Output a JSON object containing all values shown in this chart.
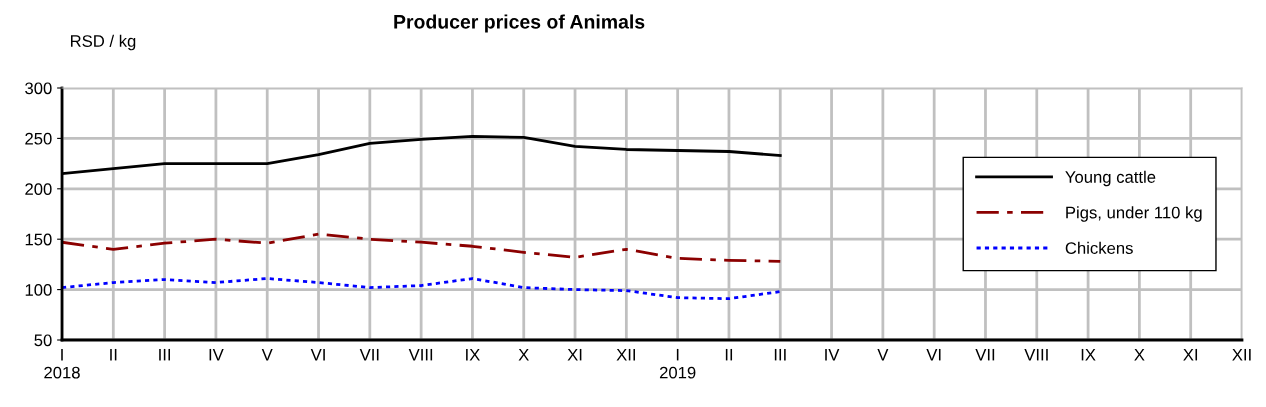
{
  "chart_data": {
    "type": "line",
    "title": "Producer prices of Animals",
    "ylabel": "RSD / kg",
    "categories": [
      "I\n2018",
      "II",
      "III",
      "IV",
      "V",
      "VI",
      "VII",
      "VIII",
      "IX",
      "X",
      "XI",
      "XII",
      "I\n2019",
      "II",
      "III",
      "IV",
      "V",
      "VI",
      "VII",
      "VIII",
      "IX",
      "X",
      "XI",
      "XII"
    ],
    "series": [
      {
        "name": "Young cattle",
        "color": "#000000",
        "line_style": "solid",
        "values": [
          215,
          220,
          225,
          225,
          225,
          234,
          245,
          249,
          252,
          251,
          242,
          239,
          238,
          237,
          233,
          null,
          null,
          null,
          null,
          null,
          null,
          null,
          null,
          null
        ]
      },
      {
        "name": "Pigs, under 110 kg",
        "color": "#8b0000",
        "line_style": "dashed",
        "values": [
          147,
          140,
          146,
          150,
          146,
          155,
          150,
          147,
          143,
          137,
          132,
          140,
          131,
          129,
          128,
          null,
          null,
          null,
          null,
          null,
          null,
          null,
          null,
          null
        ]
      },
      {
        "name": "Chickens",
        "color": "#0000ff",
        "line_style": "dotted",
        "values": [
          102,
          107,
          110,
          107,
          111,
          107,
          102,
          104,
          111,
          102,
          100,
          99,
          92,
          91,
          98,
          null,
          null,
          null,
          null,
          null,
          null,
          null,
          null,
          null
        ]
      }
    ],
    "ylim": [
      50,
      300
    ],
    "yticks": [
      50,
      100,
      150,
      200,
      250,
      300
    ],
    "grid": true,
    "legend": "right",
    "marker": "none"
  }
}
